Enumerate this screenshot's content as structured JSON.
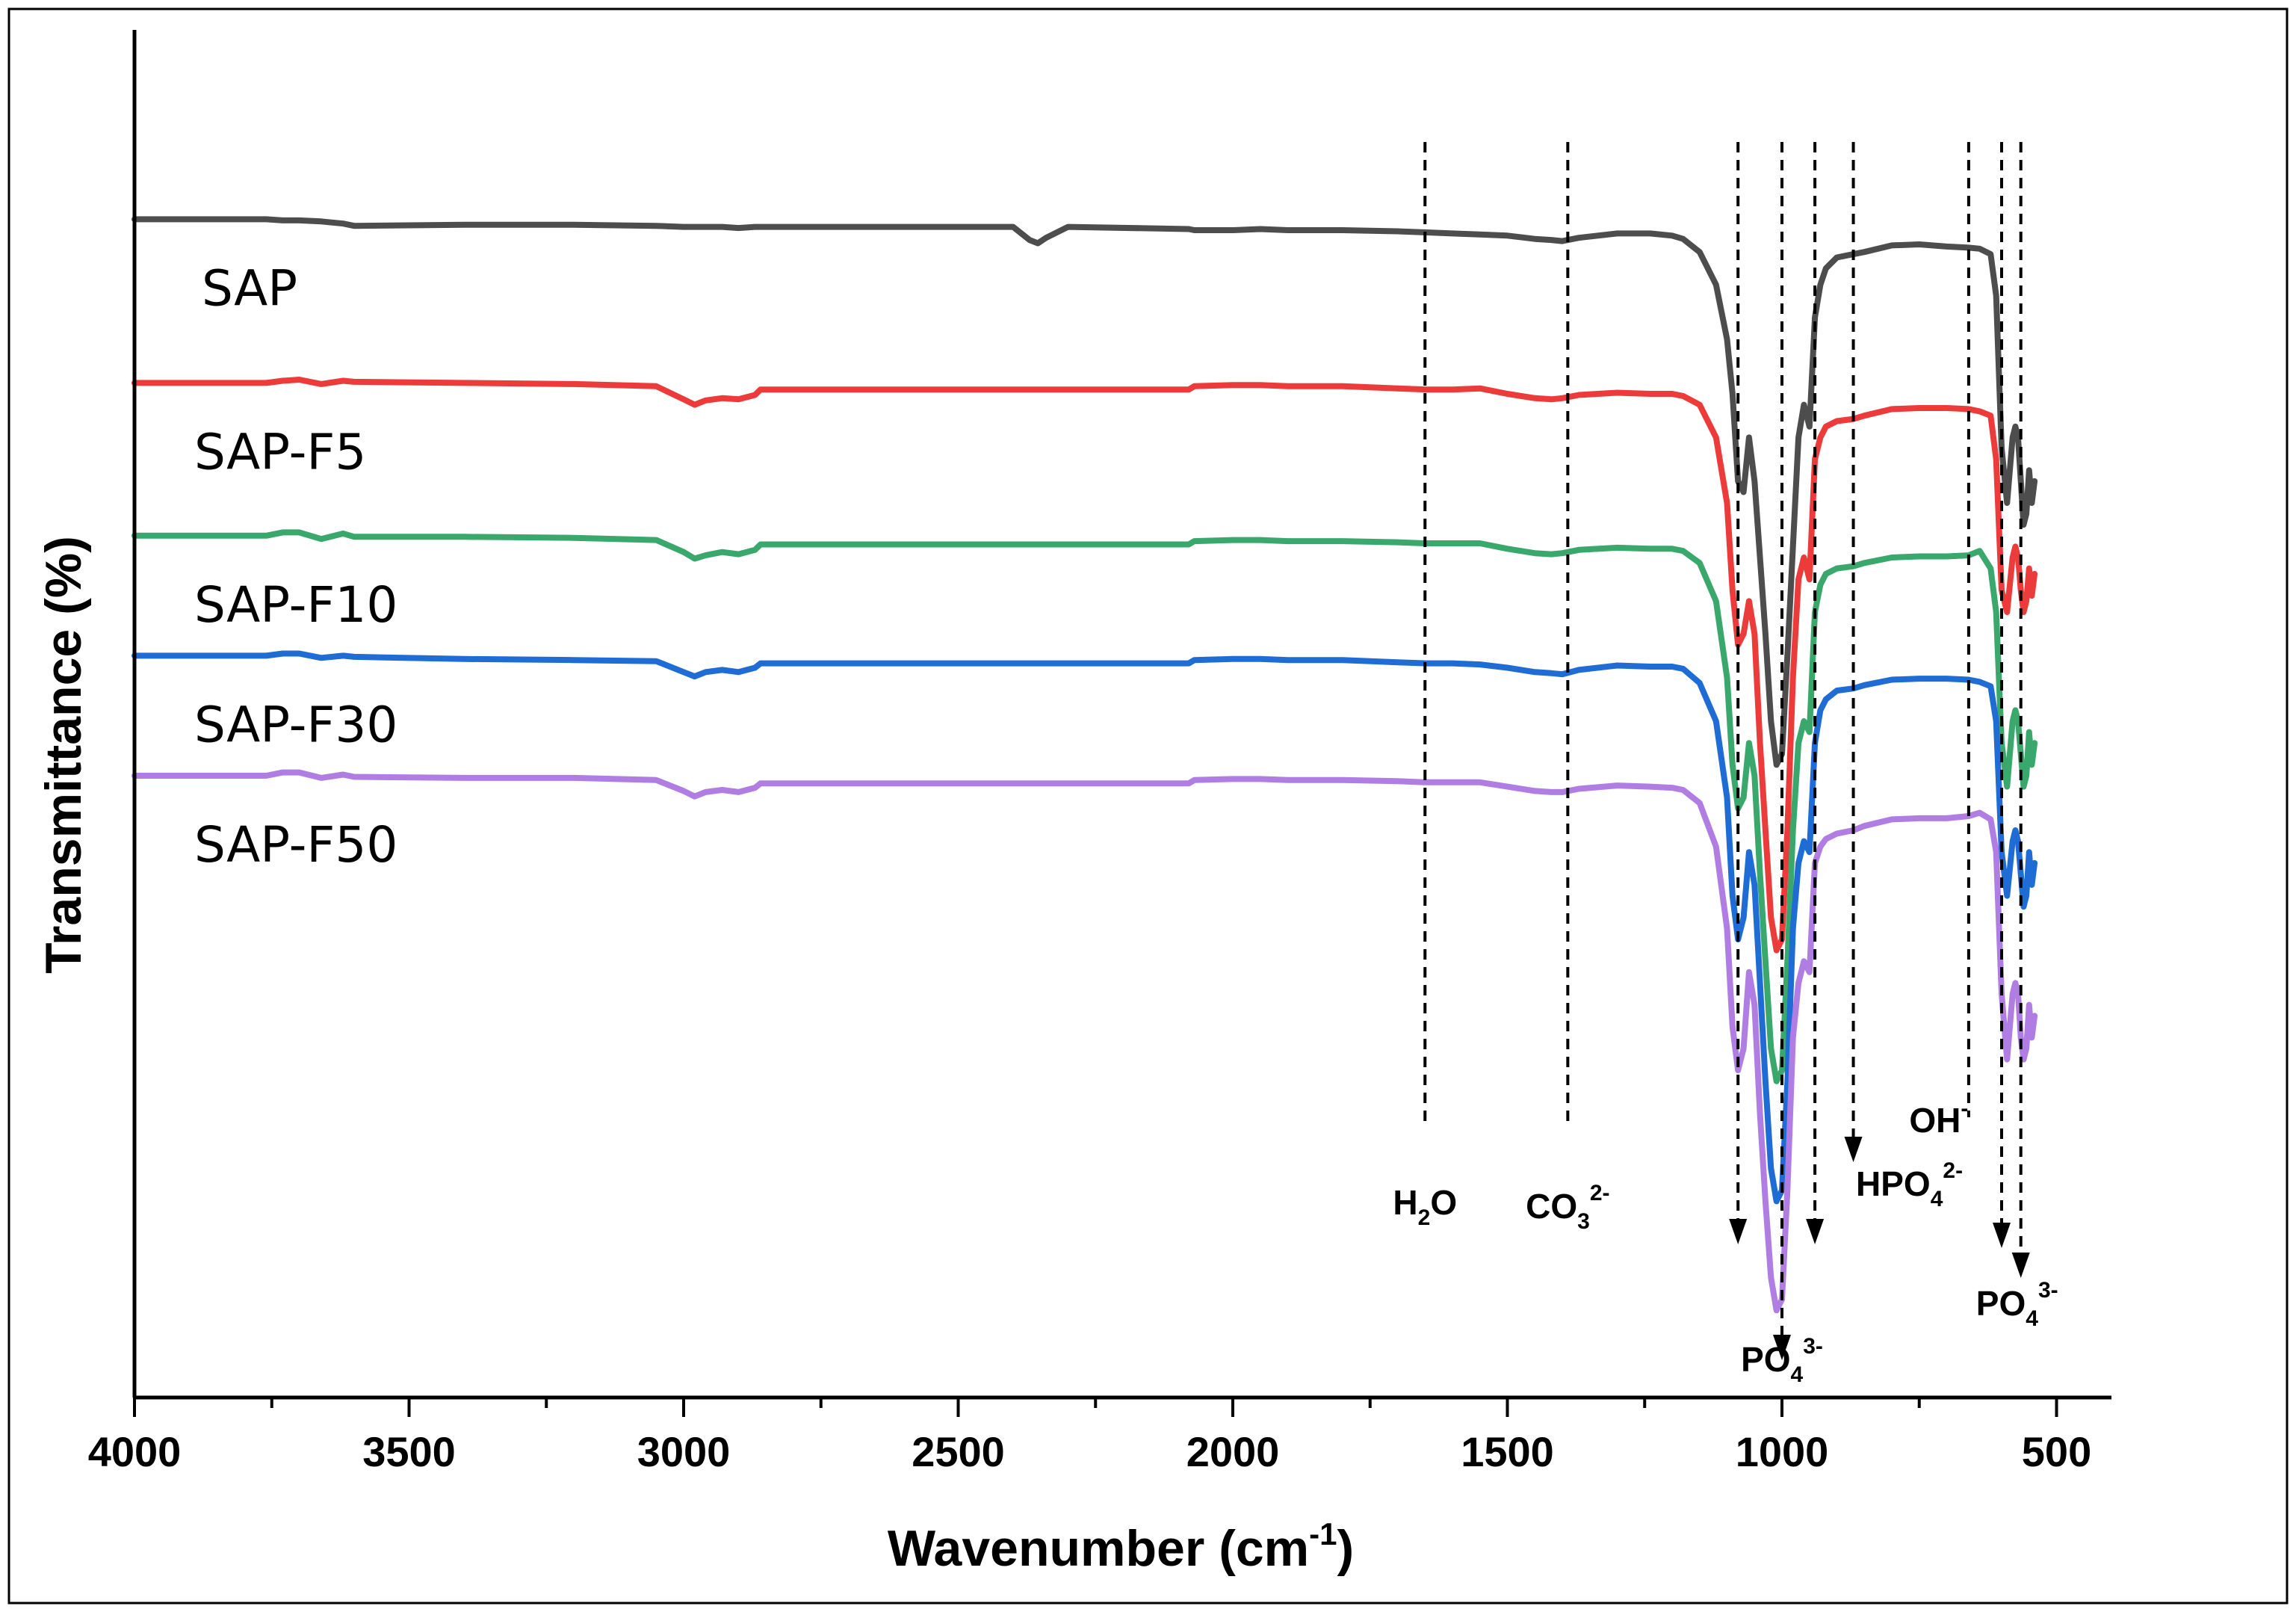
{
  "chart_data": {
    "type": "line",
    "title": "",
    "xlabel": "Wavenumber (cm",
    "xlabel_sup": "-1",
    "xlabel_end": ")",
    "ylabel": "Transmittance (%)",
    "xlim": [
      4000,
      400
    ],
    "x_reversed": true,
    "xticks": [
      4000,
      3500,
      3000,
      2500,
      2000,
      1500,
      1000,
      500
    ],
    "xtick_labels": [
      "4000",
      "3500",
      "3000",
      "2500",
      "2000",
      "1500",
      "1000",
      "500"
    ],
    "ylim": [
      0,
      100
    ],
    "y_ticks_shown": false,
    "x": [
      4000,
      3760,
      3730,
      3700,
      3660,
      3620,
      3600,
      3400,
      3200,
      3050,
      3000,
      2980,
      2960,
      2930,
      2900,
      2870,
      2860,
      2400,
      2370,
      2355,
      2340,
      2300,
      2080,
      2070,
      2000,
      1950,
      1900,
      1800,
      1700,
      1650,
      1600,
      1550,
      1500,
      1450,
      1420,
      1400,
      1370,
      1300,
      1240,
      1200,
      1180,
      1150,
      1120,
      1100,
      1090,
      1080,
      1070,
      1060,
      1050,
      1040,
      1030,
      1020,
      1010,
      1000,
      990,
      980,
      970,
      960,
      950,
      940,
      930,
      920,
      900,
      870,
      850,
      800,
      750,
      700,
      660,
      640,
      620,
      610,
      600,
      590,
      580,
      575,
      570,
      565,
      560,
      555,
      550,
      545,
      540
    ],
    "series": [
      {
        "name": "SAP",
        "color": "#4d4d4d",
        "values": [
          96.0,
          96.0,
          95.9,
          95.9,
          95.8,
          95.6,
          95.4,
          95.5,
          95.5,
          95.4,
          95.3,
          95.3,
          95.3,
          95.3,
          95.2,
          95.3,
          95.3,
          95.3,
          94.1,
          93.8,
          94.3,
          95.3,
          95.1,
          95.0,
          95.0,
          95.1,
          95.0,
          95.0,
          94.9,
          94.8,
          94.7,
          94.6,
          94.5,
          94.2,
          94.1,
          94.0,
          94.3,
          94.7,
          94.7,
          94.5,
          94.2,
          93.0,
          90.0,
          85.0,
          80.0,
          72.0,
          71.0,
          76.0,
          72.0,
          65.0,
          58.0,
          50.0,
          46.0,
          47.0,
          56.0,
          66.0,
          76.0,
          79.0,
          77.0,
          87.0,
          90.0,
          91.5,
          92.5,
          92.8,
          93.0,
          93.6,
          93.7,
          93.5,
          93.4,
          93.3,
          92.8,
          89.0,
          75.0,
          70.0,
          76.0,
          77.0,
          76.0,
          72.0,
          68.0,
          69.0,
          73.0,
          70.0,
          72.0
        ]
      },
      {
        "name": "SAP-F5",
        "color": "#ec3b3b",
        "values": [
          81.0,
          81.0,
          81.2,
          81.3,
          80.9,
          81.2,
          81.1,
          81.0,
          80.9,
          80.7,
          79.5,
          79.0,
          79.4,
          79.6,
          79.5,
          79.9,
          80.4,
          80.4,
          80.4,
          80.4,
          80.4,
          80.4,
          80.4,
          80.7,
          80.8,
          80.8,
          80.7,
          80.7,
          80.5,
          80.4,
          80.4,
          80.5,
          80.0,
          79.6,
          79.5,
          79.6,
          79.9,
          80.1,
          80.0,
          80.0,
          79.8,
          79.0,
          76.0,
          70.0,
          62.0,
          57.0,
          58.0,
          61.0,
          58.0,
          48.0,
          40.0,
          32.0,
          29.0,
          30.0,
          40.0,
          54.0,
          63.0,
          65.0,
          63.0,
          74.0,
          76.0,
          77.0,
          77.5,
          77.7,
          78.0,
          78.6,
          78.7,
          78.7,
          78.6,
          78.4,
          78.0,
          74.0,
          62.0,
          60.0,
          65.0,
          66.0,
          65.0,
          62.0,
          60.0,
          61.0,
          64.0,
          61.5,
          63.5
        ]
      },
      {
        "name": "SAP-F10",
        "color": "#3aa86c",
        "values": [
          67.0,
          67.0,
          67.3,
          67.3,
          66.7,
          67.2,
          66.9,
          66.9,
          66.8,
          66.6,
          65.5,
          64.9,
          65.2,
          65.5,
          65.3,
          65.7,
          66.2,
          66.2,
          66.2,
          66.2,
          66.2,
          66.2,
          66.2,
          66.5,
          66.6,
          66.6,
          66.5,
          66.5,
          66.4,
          66.3,
          66.3,
          66.3,
          65.8,
          65.4,
          65.3,
          65.4,
          65.7,
          65.9,
          65.8,
          65.8,
          65.6,
          64.5,
          61.0,
          54.0,
          46.0,
          42.0,
          43.0,
          48.0,
          45.0,
          36.0,
          28.0,
          20.0,
          17.0,
          18.0,
          28.0,
          40.0,
          48.0,
          50.0,
          49.0,
          60.0,
          62.5,
          63.5,
          64.0,
          64.2,
          64.5,
          65.0,
          65.1,
          65.1,
          65.2,
          65.6,
          64.0,
          60.0,
          48.0,
          44.0,
          50.0,
          51.0,
          50.0,
          47.0,
          44.0,
          45.0,
          49.0,
          46.0,
          48.0
        ]
      },
      {
        "name": "SAP-F30",
        "color": "#1f6cd4",
        "values": [
          56.0,
          56.0,
          56.2,
          56.2,
          55.8,
          56.0,
          55.9,
          55.7,
          55.6,
          55.5,
          54.5,
          54.1,
          54.5,
          54.7,
          54.5,
          54.9,
          55.3,
          55.3,
          55.3,
          55.3,
          55.3,
          55.3,
          55.3,
          55.6,
          55.7,
          55.7,
          55.6,
          55.6,
          55.4,
          55.3,
          55.3,
          55.2,
          54.9,
          54.5,
          54.4,
          54.3,
          54.7,
          55.1,
          55.0,
          55.0,
          54.8,
          53.5,
          50.0,
          43.0,
          34.0,
          30.0,
          32.0,
          38.0,
          35.0,
          26.0,
          17.0,
          9.0,
          6.0,
          7.0,
          17.0,
          31.0,
          37.0,
          39.0,
          38.0,
          48.0,
          51.0,
          52.0,
          52.8,
          53.0,
          53.3,
          53.8,
          53.9,
          53.9,
          53.8,
          53.6,
          53.2,
          50.0,
          38.0,
          34.0,
          39.0,
          40.0,
          39.0,
          36.0,
          33.0,
          34.0,
          38.0,
          35.0,
          37.0
        ]
      },
      {
        "name": "SAP-F50",
        "color": "#b07ee2",
        "values": [
          45.0,
          45.0,
          45.3,
          45.3,
          44.8,
          45.1,
          44.9,
          44.8,
          44.8,
          44.6,
          43.6,
          43.1,
          43.5,
          43.7,
          43.5,
          43.9,
          44.3,
          44.3,
          44.3,
          44.3,
          44.3,
          44.3,
          44.3,
          44.6,
          44.7,
          44.7,
          44.6,
          44.6,
          44.5,
          44.4,
          44.4,
          44.4,
          44.0,
          43.6,
          43.5,
          43.5,
          43.8,
          44.1,
          44.0,
          43.9,
          43.7,
          42.5,
          38.5,
          31.0,
          22.0,
          18.0,
          20.0,
          27.0,
          24.0,
          14.0,
          6.0,
          -1.0,
          -4.0,
          -3.0,
          7.0,
          21.0,
          26.0,
          28.0,
          27.0,
          37.0,
          38.5,
          39.2,
          39.7,
          40.0,
          40.4,
          41.0,
          41.1,
          41.1,
          41.3,
          41.6,
          41.0,
          38.0,
          25.0,
          19.0,
          25.0,
          26.0,
          25.0,
          21.0,
          19.0,
          20.0,
          24.0,
          21.0,
          23.0
        ]
      }
    ],
    "bands": [
      {
        "x": 1650,
        "label": "H",
        "sub": "2",
        "label_end": "O",
        "sup": "",
        "arrow": false
      },
      {
        "x": 1390,
        "label": "CO",
        "sub": "3",
        "label_end": "",
        "sup": "2-",
        "arrow": false
      },
      {
        "x": 1080,
        "label": "",
        "sub": "",
        "label_end": "",
        "sup": "",
        "arrow": true
      },
      {
        "x": 1000,
        "label": "PO",
        "sub": "4",
        "label_end": "",
        "sup": "3-",
        "arrow": true
      },
      {
        "x": 940,
        "label": "",
        "sub": "",
        "label_end": "",
        "sup": "",
        "arrow": true
      },
      {
        "x": 870,
        "label": "HPO",
        "sub": "4",
        "label_end": "",
        "sup": "2-",
        "arrow": true
      },
      {
        "x": 660,
        "label": "OH",
        "sub": "",
        "label_end": "",
        "sup": "-",
        "arrow": false
      },
      {
        "x": 600,
        "label": "",
        "sub": "",
        "label_end": "",
        "sup": "",
        "arrow": true
      },
      {
        "x": 565,
        "label": "PO",
        "sub": "4",
        "label_end": "",
        "sup": "3-",
        "arrow": true
      }
    ]
  }
}
